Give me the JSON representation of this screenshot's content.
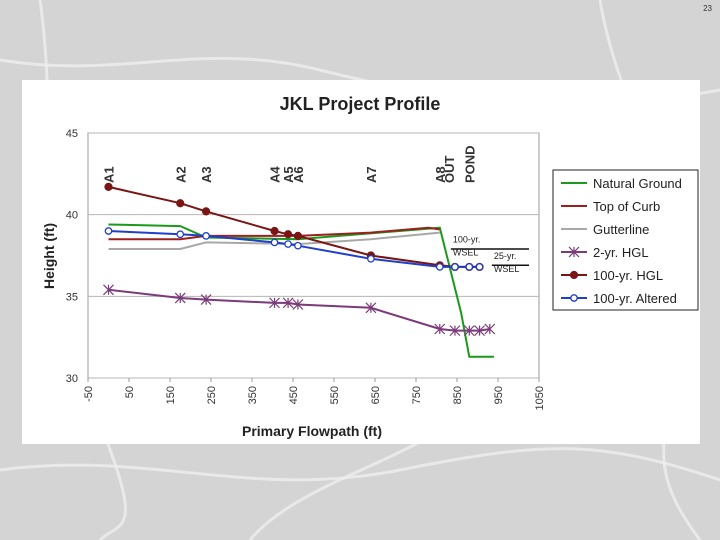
{
  "page": {
    "number": "23"
  },
  "chart_data": {
    "type": "line",
    "title": "JKL Project Profile",
    "xlabel": "Primary Flowpath (ft)",
    "ylabel": "Height (ft)",
    "xlim": [
      -50,
      1050
    ],
    "ylim": [
      30,
      45
    ],
    "x_ticks": [
      -50,
      50,
      150,
      250,
      350,
      450,
      550,
      650,
      750,
      850,
      950,
      1050
    ],
    "x_tick_labels": [
      "-50",
      "50",
      "150",
      "250",
      "350",
      "450",
      "550",
      "650",
      "750",
      "850",
      "950",
      "1050"
    ],
    "y_ticks": [
      30,
      35,
      40,
      45
    ],
    "y_tick_labels": [
      "30",
      "35",
      "40",
      "45"
    ],
    "stations": [
      {
        "label": "A1",
        "x": 0
      },
      {
        "label": "A2",
        "x": 175
      },
      {
        "label": "A3",
        "x": 238
      },
      {
        "label": "A4",
        "x": 405
      },
      {
        "label": "A5",
        "x": 438
      },
      {
        "label": "A6",
        "x": 462
      },
      {
        "label": "A7",
        "x": 640
      },
      {
        "label": "A8",
        "x": 808
      },
      {
        "label": "OUT",
        "x": 830
      },
      {
        "label": "POND",
        "x": 880
      }
    ],
    "annotations": [
      {
        "text": "100-yr.",
        "x": 840,
        "y": 38.3
      },
      {
        "text": "WSEL",
        "x": 840,
        "y": 37.5
      },
      {
        "text": "25-yr.",
        "x": 940,
        "y": 37.3
      },
      {
        "text": "WSEL",
        "x": 940,
        "y": 36.5
      }
    ],
    "legend_position": "right",
    "series": [
      {
        "name": "Natural Ground",
        "color": "#1a9a1a",
        "marker": "none",
        "x": [
          0,
          175,
          238,
          462,
          808,
          860,
          880,
          940
        ],
        "y": [
          39.4,
          39.3,
          38.6,
          38.5,
          39.2,
          34.0,
          31.3,
          31.3
        ]
      },
      {
        "name": "Top of Curb",
        "color": "#9c1f1f",
        "marker": "none",
        "x": [
          0,
          175,
          238,
          462,
          640,
          780,
          808
        ],
        "y": [
          38.5,
          38.5,
          38.7,
          38.7,
          38.9,
          39.2,
          39.1
        ]
      },
      {
        "name": "Gutterline",
        "color": "#a8a8a8",
        "marker": "none",
        "x": [
          0,
          175,
          238,
          462,
          640,
          808
        ],
        "y": [
          37.9,
          37.9,
          38.3,
          38.2,
          38.5,
          38.9
        ]
      },
      {
        "name": "2-yr. HGL",
        "color": "#7b3a79",
        "marker": "asterisk",
        "x": [
          0,
          175,
          238,
          405,
          438,
          462,
          640,
          808,
          845,
          880,
          905,
          930
        ],
        "y": [
          35.4,
          34.9,
          34.8,
          34.6,
          34.6,
          34.5,
          34.3,
          33.0,
          32.9,
          32.9,
          32.9,
          33.0
        ]
      },
      {
        "name": "100-yr. HGL",
        "color": "#7a1515",
        "marker": "circle-filled",
        "x": [
          0,
          175,
          238,
          405,
          438,
          462,
          640,
          808,
          845,
          880,
          905
        ],
        "y": [
          41.7,
          40.7,
          40.2,
          39.0,
          38.8,
          38.7,
          37.5,
          36.9,
          36.8,
          36.8,
          36.8
        ]
      },
      {
        "name": "100-yr. Altered",
        "color": "#1f3fc9",
        "marker": "circle-open",
        "x": [
          0,
          175,
          238,
          405,
          438,
          462,
          640,
          808,
          845,
          880,
          905
        ],
        "y": [
          39.0,
          38.8,
          38.7,
          38.3,
          38.2,
          38.1,
          37.3,
          36.8,
          36.8,
          36.8,
          36.8
        ]
      }
    ]
  }
}
